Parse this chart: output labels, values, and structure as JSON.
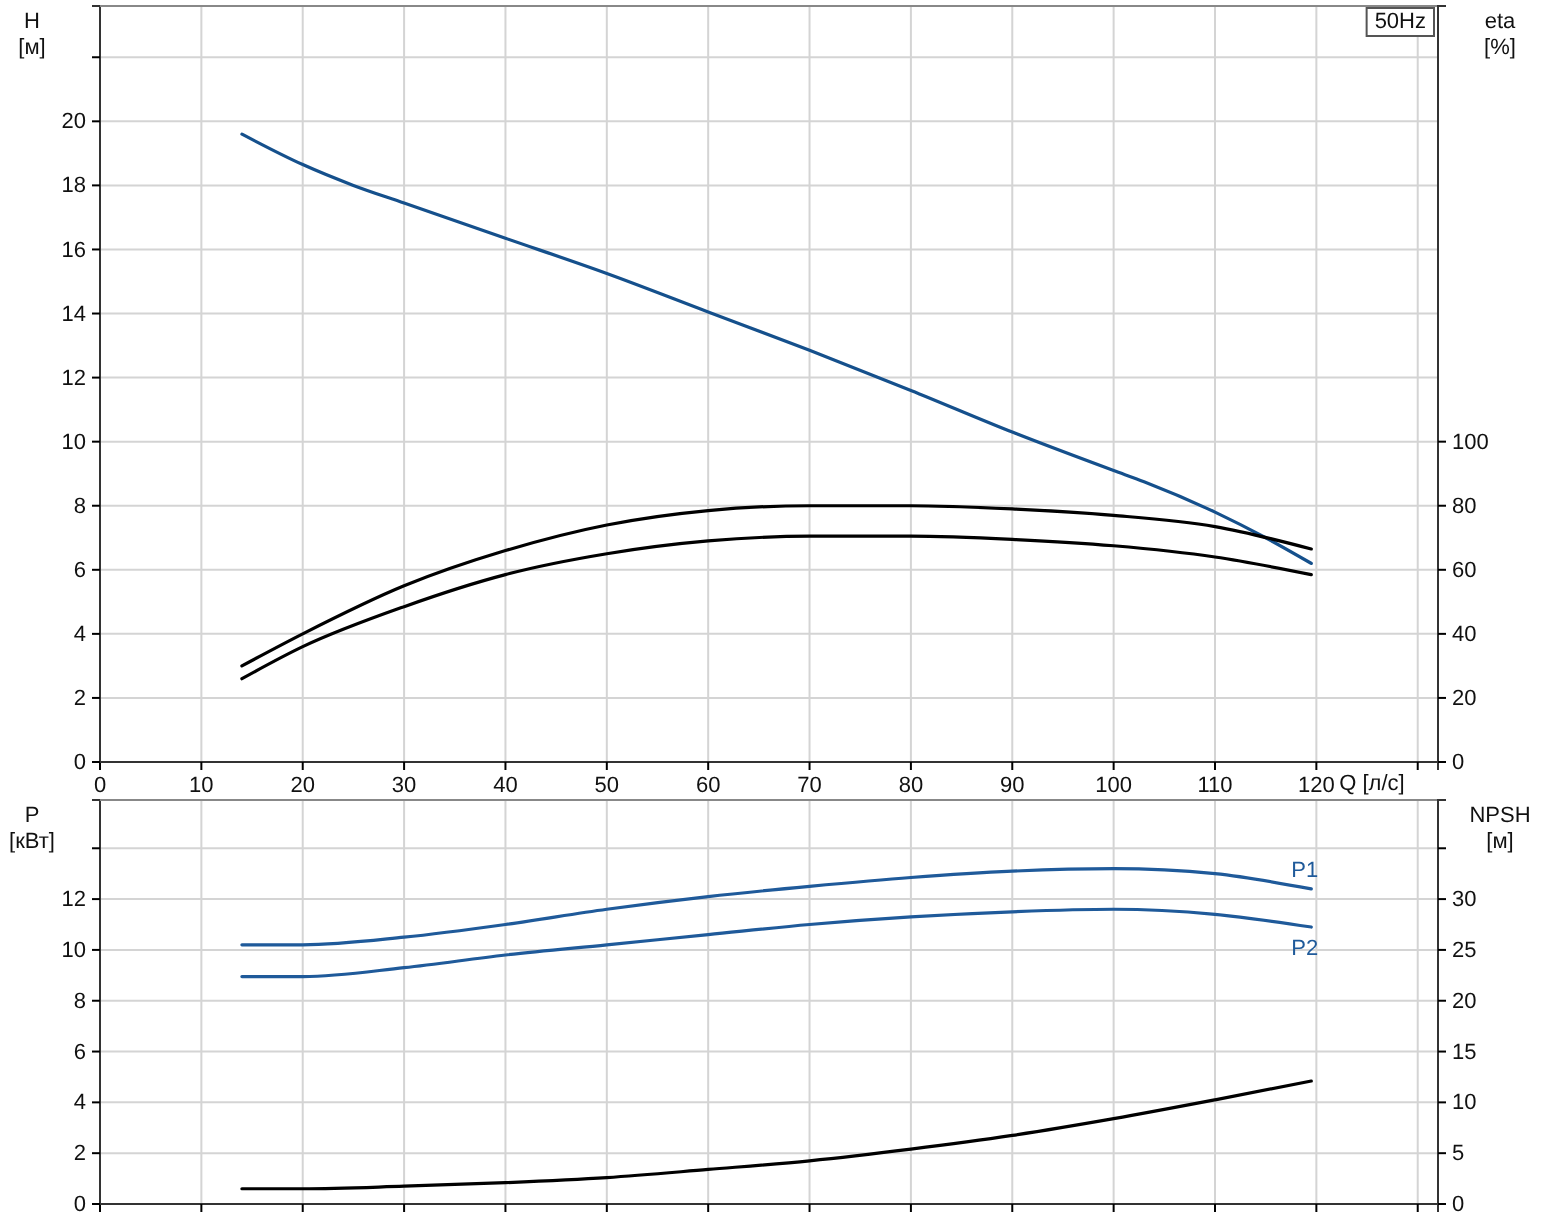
{
  "chart_data": [
    {
      "type": "line",
      "xlabel": "Q [л/с]",
      "ylabel": "H [м]",
      "y2label": "eta [%]",
      "annotations": [
        "50Hz"
      ],
      "xlim": [
        0,
        132
      ],
      "xticks": [
        0,
        10,
        20,
        30,
        40,
        50,
        60,
        70,
        80,
        90,
        100,
        110,
        120,
        {
          "value": 130,
          "label": null
        }
      ],
      "ylim": [
        0,
        23.6
      ],
      "yticks": [
        0,
        2,
        4,
        6,
        8,
        10,
        12,
        14,
        16,
        18,
        20,
        {
          "value": 22,
          "label": null
        }
      ],
      "y2lim": [
        0,
        236
      ],
      "y2ticks": [
        0,
        20,
        40,
        60,
        80,
        100
      ],
      "grid": true,
      "series": [
        {
          "color": "#15508c",
          "x": [
            14,
            20,
            25,
            30,
            40,
            50,
            60,
            70,
            80,
            90,
            100,
            103,
            110,
            115,
            119.5
          ],
          "values": [
            19.6,
            18.65,
            18.0,
            17.45,
            16.35,
            15.25,
            14.05,
            12.85,
            11.6,
            10.3,
            9.1,
            8.75,
            7.8,
            7.0,
            6.2
          ]
        },
        {
          "color": "#000000",
          "axis": "y2",
          "x": [
            14,
            20,
            30,
            40,
            50,
            60,
            70,
            80,
            90,
            100,
            110,
            119.5
          ],
          "values": [
            30,
            40,
            55,
            66,
            74,
            78.5,
            80,
            80,
            79,
            77,
            73.5,
            66.5
          ]
        },
        {
          "color": "#000000",
          "axis": "y2",
          "x": [
            14,
            20,
            30,
            40,
            50,
            60,
            70,
            80,
            90,
            100,
            110,
            119.5
          ],
          "values": [
            26,
            36,
            48.5,
            58.5,
            65,
            69,
            70.5,
            70.5,
            69.5,
            67.5,
            64,
            58.5
          ]
        }
      ]
    },
    {
      "type": "line",
      "ylabel": "P [кВт]",
      "y2label": "NPSH [м]",
      "xlim": [
        0,
        132
      ],
      "xticks": [
        0,
        10,
        20,
        30,
        40,
        50,
        60,
        70,
        80,
        90,
        100,
        110,
        120,
        130
      ],
      "ylim": [
        0,
        15.9
      ],
      "yticks": [
        0,
        2,
        4,
        6,
        8,
        10,
        12,
        {
          "value": 14,
          "label": null
        }
      ],
      "y2lim": [
        0,
        39.75
      ],
      "y2ticks": [
        0,
        5,
        10,
        15,
        20,
        25,
        30,
        {
          "value": 35,
          "label": null
        }
      ],
      "grid": true,
      "tick_labels": "y",
      "series": [
        {
          "name": "P1",
          "color": "#1f5a9a",
          "x": [
            14,
            20,
            30,
            40,
            50,
            60,
            70,
            80,
            90,
            100,
            110,
            119.5
          ],
          "values": [
            10.2,
            10.2,
            10.5,
            11.0,
            11.6,
            12.1,
            12.5,
            12.85,
            13.1,
            13.2,
            13.0,
            12.4
          ]
        },
        {
          "name": "P2",
          "color": "#1f5a9a",
          "x": [
            14,
            20,
            30,
            40,
            50,
            60,
            70,
            80,
            90,
            100,
            110,
            119.5
          ],
          "values": [
            8.95,
            8.95,
            9.3,
            9.8,
            10.2,
            10.6,
            11.0,
            11.3,
            11.5,
            11.6,
            11.4,
            10.9
          ]
        },
        {
          "color": "#000000",
          "axis": "y2",
          "x": [
            14,
            20,
            30,
            40,
            50,
            60,
            70,
            80,
            90,
            100,
            110,
            119.5
          ],
          "values": [
            1.5,
            1.5,
            1.75,
            2.1,
            2.6,
            3.4,
            4.25,
            5.4,
            6.75,
            8.4,
            10.25,
            12.1
          ]
        }
      ]
    }
  ]
}
